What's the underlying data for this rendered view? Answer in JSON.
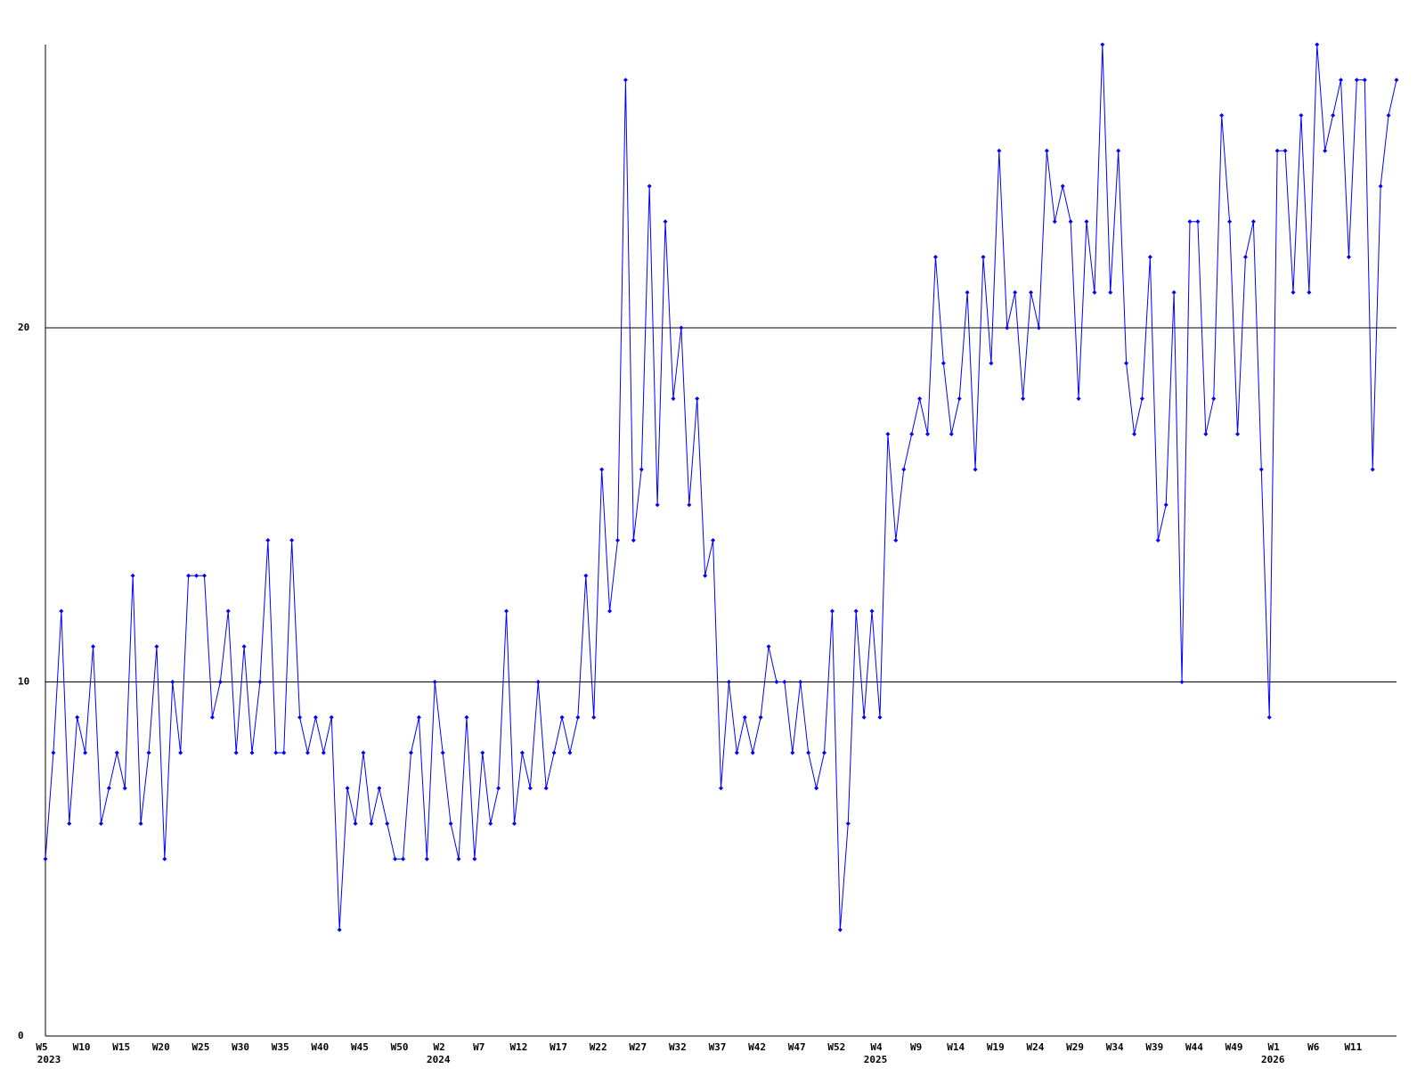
{
  "chart_data": {
    "type": "line",
    "categories": [
      "W5",
      null,
      null,
      null,
      null,
      "W10",
      null,
      null,
      null,
      null,
      "W15",
      null,
      null,
      null,
      null,
      "W20",
      null,
      null,
      null,
      null,
      "W25",
      null,
      null,
      null,
      null,
      "W30",
      null,
      null,
      null,
      null,
      "W35",
      null,
      null,
      null,
      null,
      "W40",
      null,
      null,
      null,
      null,
      "W45",
      null,
      null,
      null,
      null,
      "W50",
      null,
      null,
      null,
      null,
      "W2",
      null,
      null,
      null,
      null,
      "W7",
      null,
      null,
      null,
      null,
      "W12",
      null,
      null,
      null,
      null,
      "W17",
      null,
      null,
      null,
      null,
      "W22",
      null,
      null,
      null,
      null,
      "W27",
      null,
      null,
      null,
      null,
      "W32",
      null,
      null,
      null,
      null,
      "W37",
      null,
      null,
      null,
      null,
      "W42",
      null,
      null,
      null,
      null,
      "W47",
      null,
      null,
      null,
      null,
      "W52",
      null,
      null,
      null,
      null,
      "W4",
      null,
      null,
      null,
      null,
      "W9",
      null,
      null,
      null,
      null,
      "W14",
      null,
      null,
      null,
      null,
      "W19",
      null,
      null,
      null,
      null,
      "W24",
      null,
      null,
      null,
      null,
      "W29",
      null,
      null,
      null,
      null,
      "W34",
      null,
      null,
      null,
      null,
      "W39",
      null,
      null,
      null,
      null,
      "W44",
      null,
      null,
      null,
      null,
      "W49",
      null,
      null,
      null,
      null,
      "W1",
      null,
      null,
      null,
      null,
      "W6",
      null,
      null,
      null,
      null,
      "W11",
      null,
      null,
      null,
      null,
      null
    ],
    "years": [
      "2023",
      null,
      null,
      null,
      null,
      null,
      null,
      null,
      null,
      null,
      null,
      null,
      null,
      null,
      null,
      null,
      null,
      null,
      null,
      null,
      null,
      null,
      null,
      null,
      null,
      null,
      null,
      null,
      null,
      null,
      null,
      null,
      null,
      null,
      null,
      null,
      null,
      null,
      null,
      null,
      null,
      null,
      null,
      null,
      null,
      null,
      null,
      null,
      null,
      "2024",
      null,
      null,
      null,
      null,
      null,
      null,
      null,
      null,
      null,
      null,
      null,
      null,
      null,
      null,
      null,
      null,
      null,
      null,
      null,
      null,
      null,
      null,
      null,
      null,
      null,
      null,
      null,
      null,
      null,
      null,
      null,
      null,
      null,
      null,
      null,
      null,
      null,
      null,
      null,
      null,
      null,
      null,
      null,
      null,
      null,
      null,
      null,
      null,
      null,
      null,
      null,
      null,
      null,
      null,
      "2025",
      null,
      null,
      null,
      null,
      null,
      null,
      null,
      null,
      null,
      null,
      null,
      null,
      null,
      null,
      null,
      null,
      null,
      null,
      null,
      null,
      null,
      null,
      null,
      null,
      null,
      null,
      null,
      null,
      null,
      null,
      null,
      null,
      null,
      null,
      null,
      null,
      null,
      null,
      null,
      null,
      null,
      null,
      null,
      null,
      null,
      null,
      null,
      null,
      null,
      "2026",
      null,
      null,
      null,
      null,
      null,
      null,
      null,
      null,
      null,
      null,
      null,
      null,
      null,
      null,
      null,
      null
    ],
    "series": [
      {
        "color": "#0000ff",
        "values": [
          5,
          8,
          12,
          6,
          9,
          8,
          11,
          6,
          7,
          8,
          7,
          13,
          6,
          8,
          11,
          5,
          10,
          8,
          13,
          13,
          13,
          9,
          10,
          12,
          8,
          11,
          8,
          10,
          14,
          8,
          8,
          14,
          9,
          8,
          9,
          8,
          9,
          3,
          7,
          6,
          8,
          6,
          7,
          6,
          5,
          5,
          8,
          9,
          5,
          10,
          8,
          6,
          5,
          9,
          5,
          8,
          6,
          7,
          12,
          6,
          8,
          7,
          10,
          7,
          8,
          9,
          8,
          9,
          13,
          9,
          16,
          12,
          14,
          27,
          14,
          16,
          24,
          15,
          23,
          18,
          20,
          15,
          18,
          13,
          14,
          7,
          10,
          8,
          9,
          8,
          9,
          11,
          10,
          10,
          8,
          10,
          8,
          7,
          8,
          12,
          3,
          6,
          12,
          9,
          12,
          9,
          17,
          14,
          16,
          17,
          18,
          17,
          22,
          19,
          17,
          18,
          21,
          16,
          22,
          19,
          25,
          20,
          21,
          18,
          21,
          20,
          25,
          23,
          24,
          23,
          18,
          23,
          21,
          28,
          21,
          25,
          19,
          17,
          18,
          22,
          14,
          15,
          21,
          10,
          23,
          23,
          17,
          18,
          26,
          23,
          17,
          22,
          23,
          16,
          9,
          25,
          25,
          21,
          26,
          21,
          28,
          25,
          26,
          27,
          22,
          27,
          27,
          16,
          24,
          26,
          27
        ]
      }
    ],
    "ylim": [
      0,
      28
    ],
    "yticks": [
      0,
      10,
      20
    ],
    "grid": true
  }
}
